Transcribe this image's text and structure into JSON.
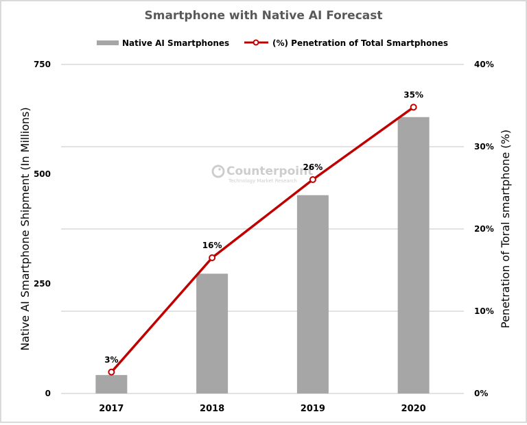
{
  "chart_data": {
    "type": "bar+line",
    "title": "Smartphone with Native AI Forecast",
    "categories": [
      "2017",
      "2018",
      "2019",
      "2020"
    ],
    "series": [
      {
        "name": "Native AI Smartphones",
        "type": "bar",
        "axis": "left",
        "color": "#a6a6a6",
        "values": [
          42,
          273,
          452,
          630
        ]
      },
      {
        "name": "(%) Penetration of Total Smartphones",
        "type": "line",
        "axis": "right",
        "color": "#c00000",
        "values": [
          2.6,
          16.5,
          26.0,
          34.8
        ],
        "data_labels": [
          "3%",
          "16%",
          "26%",
          "35%"
        ]
      }
    ],
    "ylabel": "Native AI Smartphone Shipment (In Millions)",
    "ylim": [
      0,
      750
    ],
    "yticks": [
      "0",
      "250",
      "500",
      "750"
    ],
    "y2label": "Penetration of Toral smartphone (%)",
    "y2lim": [
      0,
      40
    ],
    "y2ticks": [
      "0%",
      "10%",
      "20%",
      "30%",
      "40%"
    ],
    "xlabel": "",
    "grid": true,
    "legend_position": "top"
  },
  "legend": {
    "bar_label": "Native AI Smartphones",
    "line_label": "(%) Penetration of Total Smartphones"
  },
  "watermark": {
    "brand": "Counterpoint",
    "tagline": "Technology Market Research"
  }
}
